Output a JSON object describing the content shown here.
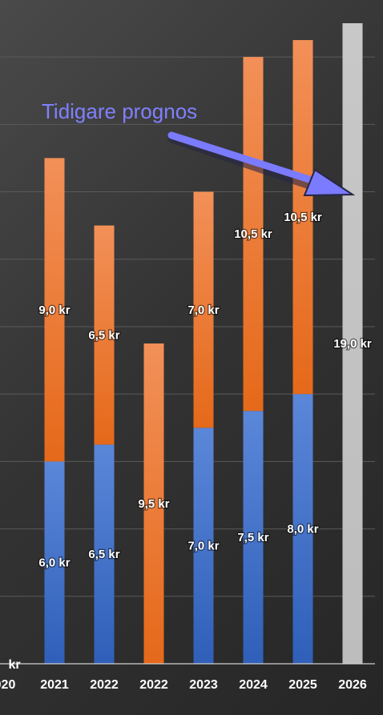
{
  "chart_data": {
    "type": "bar",
    "stacked": true,
    "categories": [
      "2021",
      "2022",
      "2022",
      "2023",
      "2024",
      "2025",
      "2026"
    ],
    "cut_off_tick_labels": [
      "020",
      "kr"
    ],
    "series": [
      {
        "color": "#4472c4",
        "values": [
          6.0,
          6.5,
          0,
          7.0,
          7.5,
          8.0,
          0
        ],
        "labels": [
          "6,0 kr",
          "6,5 kr",
          "",
          "7,0 kr",
          "7,5 kr",
          "8,0 kr",
          ""
        ]
      },
      {
        "color": "#ed7d31",
        "values": [
          9.0,
          6.5,
          9.5,
          7.0,
          10.5,
          10.5,
          0
        ],
        "labels": [
          "9,0 kr",
          "6,5 kr",
          "9,5 kr",
          "7,0 kr",
          "10,5 kr",
          "10,5 kr",
          ""
        ]
      },
      {
        "color": "#bfbfbf",
        "values": [
          0,
          0,
          0,
          0,
          0,
          0,
          19.0
        ],
        "labels": [
          "",
          "",
          "",
          "",
          "",
          "",
          "19,0 kr"
        ]
      }
    ],
    "ylim": [
      0,
      19
    ],
    "grid": true,
    "annotation": {
      "text": "Tidigare prognos",
      "color": "#8080ff",
      "points_to": "2026"
    }
  }
}
